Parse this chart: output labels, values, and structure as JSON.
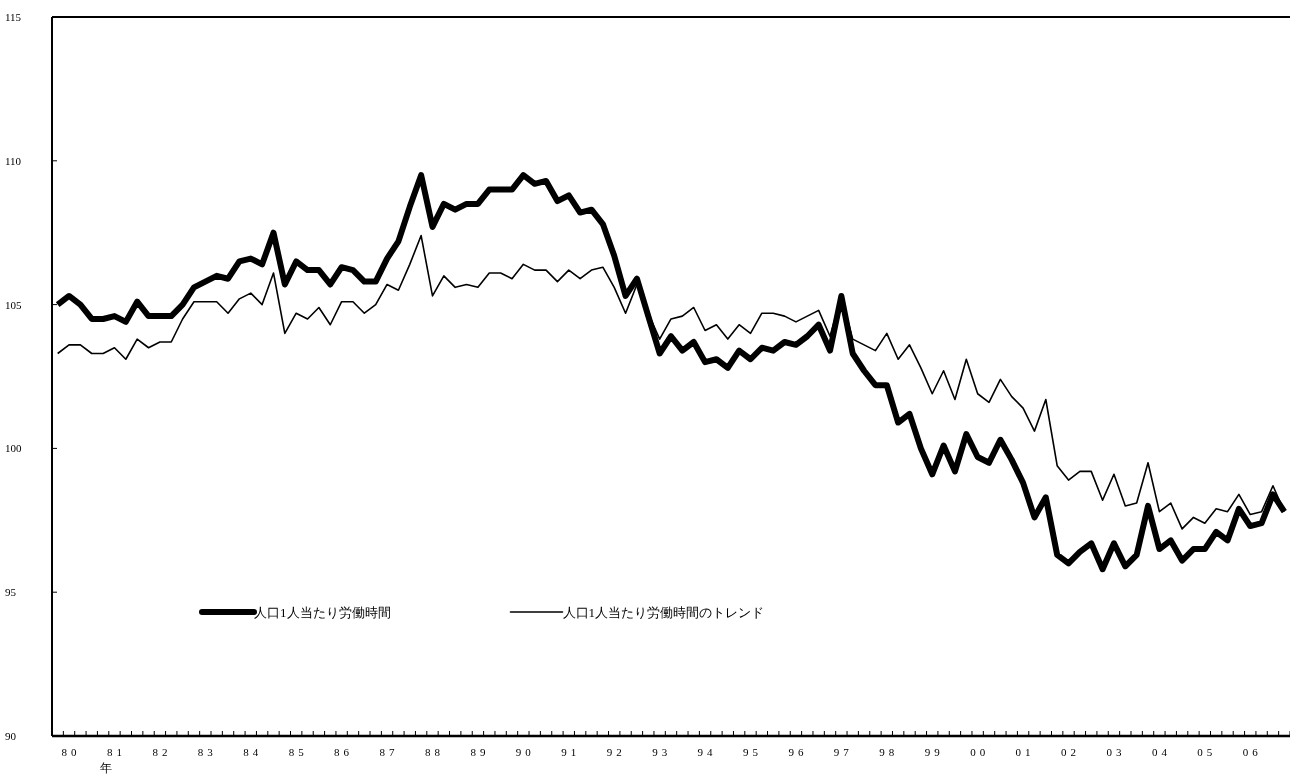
{
  "chart_data": {
    "type": "line",
    "xlabel": "年",
    "categories": [
      null,
      "80",
      null,
      null,
      null,
      "81",
      null,
      null,
      null,
      "82",
      null,
      null,
      null,
      "83",
      null,
      null,
      null,
      "84",
      null,
      null,
      null,
      "85",
      null,
      null,
      null,
      "86",
      null,
      null,
      null,
      "87",
      null,
      null,
      null,
      "88",
      null,
      null,
      null,
      "89",
      null,
      null,
      null,
      "90",
      null,
      null,
      null,
      "91",
      null,
      null,
      null,
      "92",
      null,
      null,
      null,
      "93",
      null,
      null,
      null,
      "94",
      null,
      null,
      null,
      "95",
      null,
      null,
      null,
      "96",
      null,
      null,
      null,
      "97",
      null,
      null,
      null,
      "98",
      null,
      null,
      null,
      "99",
      null,
      null,
      null,
      "00",
      null,
      null,
      null,
      "01",
      null,
      null,
      null,
      "02",
      null,
      null,
      null,
      "03",
      null,
      null,
      null,
      "04",
      null,
      null,
      null,
      "05",
      null,
      null,
      null,
      "06",
      null,
      null,
      null
    ],
    "series": [
      {
        "name": "人口1人当たり労働時間",
        "color": "#000000",
        "values": [
          105.0,
          105.3,
          105.0,
          104.5,
          104.5,
          104.6,
          104.4,
          105.1,
          104.6,
          104.6,
          104.6,
          105.0,
          105.6,
          105.8,
          106.0,
          105.9,
          106.5,
          106.6,
          106.4,
          107.5,
          105.7,
          106.5,
          106.2,
          106.2,
          105.7,
          106.3,
          106.2,
          105.8,
          105.8,
          106.6,
          107.2,
          108.4,
          109.5,
          107.7,
          108.5,
          108.3,
          108.5,
          108.5,
          109.0,
          109.0,
          109.0,
          109.5,
          109.2,
          109.3,
          108.6,
          108.8,
          108.2,
          108.3,
          107.8,
          106.7,
          105.3,
          105.9,
          104.6,
          103.3,
          103.9,
          103.4,
          103.7,
          103.0,
          103.1,
          102.8,
          103.4,
          103.1,
          103.5,
          103.4,
          103.7,
          103.6,
          103.9,
          104.3,
          103.4,
          105.3,
          103.3,
          102.7,
          102.2,
          102.2,
          100.9,
          101.2,
          100.0,
          99.1,
          100.1,
          99.2,
          100.5,
          99.7,
          99.5,
          100.3,
          99.6,
          98.8,
          97.6,
          98.3,
          96.3,
          96.0,
          96.4,
          96.7,
          95.8,
          96.7,
          95.9,
          96.3,
          98.0,
          96.5,
          96.8,
          96.1,
          96.5,
          96.5,
          97.1,
          96.8,
          97.9,
          97.3,
          97.4,
          98.4,
          97.8
        ]
      },
      {
        "name": "人口1人当たり労働時間のトレンド",
        "color": "#000000",
        "values": [
          103.3,
          103.6,
          103.6,
          103.3,
          103.3,
          103.5,
          103.1,
          103.8,
          103.5,
          103.7,
          103.7,
          104.5,
          105.1,
          105.1,
          105.1,
          104.7,
          105.2,
          105.4,
          105.0,
          106.1,
          104.0,
          104.7,
          104.5,
          104.9,
          104.3,
          105.1,
          105.1,
          104.7,
          105.0,
          105.7,
          105.5,
          106.4,
          107.4,
          105.3,
          106.0,
          105.6,
          105.7,
          105.6,
          106.1,
          106.1,
          105.9,
          106.4,
          106.2,
          106.2,
          105.8,
          106.2,
          105.9,
          106.2,
          106.3,
          105.6,
          104.7,
          105.7,
          104.7,
          103.8,
          104.5,
          104.6,
          104.9,
          104.1,
          104.3,
          103.8,
          104.3,
          104.0,
          104.7,
          104.7,
          104.6,
          104.4,
          104.6,
          104.8,
          103.9,
          105.3,
          103.8,
          103.6,
          103.4,
          104.0,
          103.1,
          103.6,
          102.8,
          101.9,
          102.7,
          101.7,
          103.1,
          101.9,
          101.6,
          102.4,
          101.8,
          101.4,
          100.6,
          101.7,
          99.4,
          98.9,
          99.2,
          99.2,
          98.2,
          99.1,
          98.0,
          98.1,
          99.5,
          97.8,
          98.1,
          97.2,
          97.6,
          97.4,
          97.9,
          97.8,
          98.4,
          97.7,
          97.8,
          98.7,
          97.8
        ]
      }
    ],
    "ylim": [
      90,
      115
    ],
    "yticks": [
      90,
      95,
      100,
      105,
      110,
      115
    ],
    "legend": "bottom",
    "line_style": "solid"
  }
}
